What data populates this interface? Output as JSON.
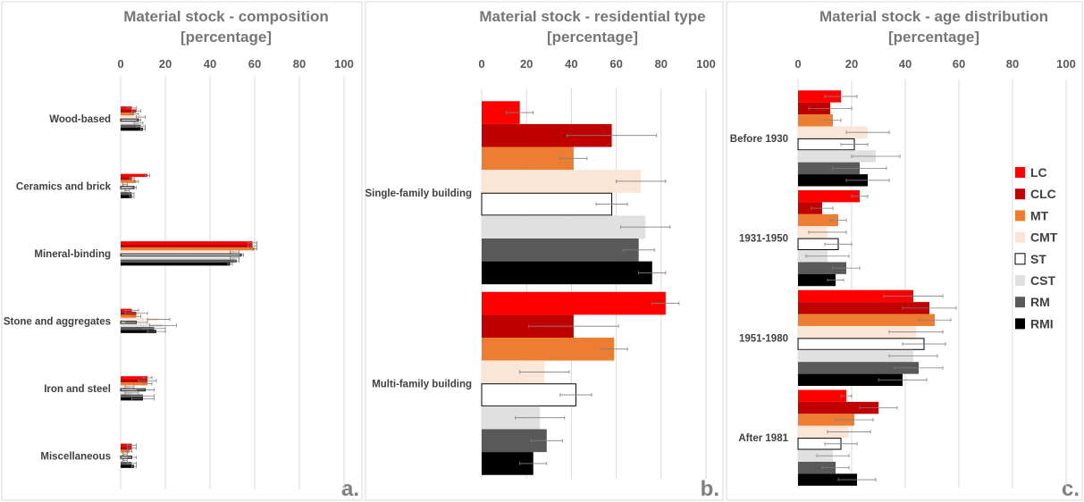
{
  "legend": [
    {
      "label": "LC",
      "color": "#ff0000",
      "stroke": "none"
    },
    {
      "label": "CLC",
      "color": "#c00000",
      "stroke": "none"
    },
    {
      "label": "MT",
      "color": "#ed7d31",
      "stroke": "none"
    },
    {
      "label": "CMT",
      "color": "#fbe5d6",
      "stroke": "none"
    },
    {
      "label": "ST",
      "color": "#ffffff",
      "stroke": "#000000"
    },
    {
      "label": "CST",
      "color": "#e0e0e0",
      "stroke": "none"
    },
    {
      "label": "RM",
      "color": "#595959",
      "stroke": "none"
    },
    {
      "label": "RMI",
      "color": "#000000",
      "stroke": "none"
    }
  ],
  "chart_data": [
    {
      "type": "bar",
      "orientation": "horizontal",
      "title": "Material  stock - composition",
      "subtitle": "[percentage]",
      "panel_label": "a.",
      "xlim": [
        0,
        100
      ],
      "ticks": [
        0,
        20,
        40,
        60,
        80,
        100
      ],
      "grid": true,
      "categories": [
        "Wood-based",
        "Ceramics and brick",
        "Mineral-binding",
        "Stone and aggregates",
        "Iron and steel",
        "Miscellaneous"
      ],
      "series": [
        {
          "name": "LC",
          "values": [
            5,
            12,
            59,
            5,
            12,
            5
          ],
          "errors": [
            2,
            1,
            2,
            3,
            2,
            2
          ]
        },
        {
          "name": "CLC",
          "values": [
            7,
            5,
            59,
            7,
            12,
            5
          ],
          "errors": [
            2,
            1,
            2,
            5,
            4,
            2
          ]
        },
        {
          "name": "MT",
          "values": [
            6,
            7,
            60,
            7,
            12,
            4
          ],
          "errors": [
            2,
            1,
            1,
            2,
            2,
            1
          ]
        },
        {
          "name": "CMT",
          "values": [
            9,
            2,
            51,
            17,
            4,
            2
          ],
          "errors": [
            2,
            1,
            2,
            5,
            2,
            1
          ]
        },
        {
          "name": "ST",
          "values": [
            8,
            6,
            54,
            7,
            11,
            5
          ],
          "errors": [
            1,
            1,
            1,
            5,
            4,
            2
          ]
        },
        {
          "name": "CST",
          "values": [
            8,
            3,
            51,
            19,
            5,
            2
          ],
          "errors": [
            2,
            1,
            2,
            6,
            3,
            1
          ]
        },
        {
          "name": "RM",
          "values": [
            9,
            5,
            52,
            15,
            10,
            5
          ],
          "errors": [
            2,
            1,
            1,
            5,
            5,
            2
          ]
        },
        {
          "name": "RMI",
          "values": [
            10,
            5,
            49,
            16,
            10,
            6
          ],
          "errors": [
            1,
            1,
            1,
            4,
            5,
            1
          ]
        }
      ]
    },
    {
      "type": "bar",
      "orientation": "horizontal",
      "title": "Material stock - residential type",
      "subtitle": "[percentage]",
      "panel_label": "b.",
      "xlim": [
        0,
        100
      ],
      "ticks": [
        0,
        20,
        40,
        60,
        80,
        100
      ],
      "grid": true,
      "categories": [
        "Single-family building",
        "Multi-family building"
      ],
      "series": [
        {
          "name": "LC",
          "values": [
            17,
            82
          ],
          "errors": [
            6,
            6
          ]
        },
        {
          "name": "CLC",
          "values": [
            58,
            41
          ],
          "errors": [
            20,
            20
          ]
        },
        {
          "name": "MT",
          "values": [
            41,
            59
          ],
          "errors": [
            6,
            6
          ]
        },
        {
          "name": "CMT",
          "values": [
            71,
            28
          ],
          "errors": [
            11,
            11
          ]
        },
        {
          "name": "ST",
          "values": [
            58,
            42
          ],
          "errors": [
            7,
            7
          ]
        },
        {
          "name": "CST",
          "values": [
            73,
            26
          ],
          "errors": [
            11,
            11
          ]
        },
        {
          "name": "RM",
          "values": [
            70,
            29
          ],
          "errors": [
            7,
            7
          ]
        },
        {
          "name": "RMI",
          "values": [
            76,
            23
          ],
          "errors": [
            6,
            6
          ]
        }
      ]
    },
    {
      "type": "bar",
      "orientation": "horizontal",
      "title": "Material stock - age distribution",
      "subtitle": "[percentage]",
      "panel_label": "c.",
      "xlim": [
        0,
        100
      ],
      "ticks": [
        0,
        20,
        40,
        60,
        80,
        100
      ],
      "grid": true,
      "categories": [
        "Before 1930",
        "1931-1950",
        "1951-1980",
        "After 1981"
      ],
      "series": [
        {
          "name": "LC",
          "values": [
            16,
            23,
            43,
            18
          ],
          "errors": [
            6,
            3,
            11,
            2
          ]
        },
        {
          "name": "CLC",
          "values": [
            12,
            9,
            49,
            30
          ],
          "errors": [
            8,
            4,
            10,
            7
          ]
        },
        {
          "name": "MT",
          "values": [
            13,
            15,
            51,
            21
          ],
          "errors": [
            3,
            3,
            6,
            7
          ]
        },
        {
          "name": "CMT",
          "values": [
            26,
            11,
            44,
            19
          ],
          "errors": [
            8,
            7,
            10,
            8
          ]
        },
        {
          "name": "ST",
          "values": [
            21,
            15,
            47,
            16
          ],
          "errors": [
            5,
            5,
            8,
            6
          ]
        },
        {
          "name": "CST",
          "values": [
            29,
            11,
            43,
            13
          ],
          "errors": [
            9,
            8,
            9,
            6
          ]
        },
        {
          "name": "RM",
          "values": [
            23,
            18,
            45,
            14
          ],
          "errors": [
            10,
            5,
            9,
            5
          ]
        },
        {
          "name": "RMI",
          "values": [
            26,
            14,
            39,
            22
          ],
          "errors": [
            8,
            3,
            9,
            7
          ]
        }
      ]
    }
  ]
}
